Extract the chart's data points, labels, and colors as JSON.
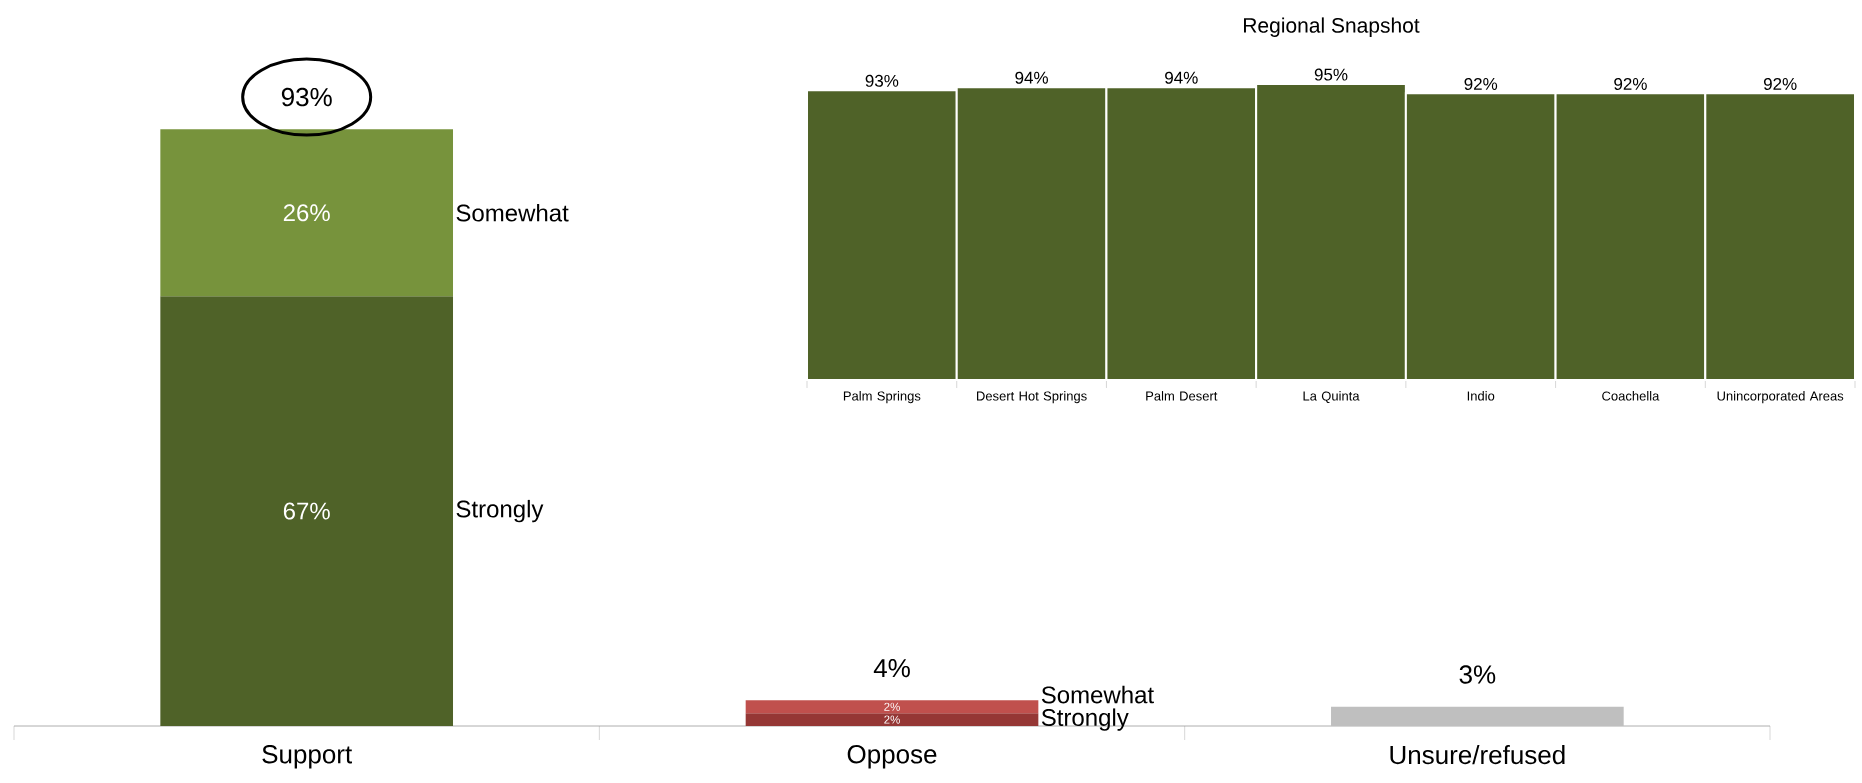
{
  "chart_data": [
    {
      "type": "bar",
      "stacked": true,
      "categories": [
        "Support",
        "Oppose",
        "Unsure/refused"
      ],
      "series": [
        {
          "name": "Strongly",
          "colors": [
            "#4f6228",
            "#953735",
            null
          ],
          "values": [
            67,
            2,
            null
          ],
          "value_labels": [
            "67%",
            "2%",
            null
          ]
        },
        {
          "name": "Somewhat",
          "colors": [
            "#77933c",
            "#c0504d",
            null
          ],
          "values": [
            26,
            2,
            null
          ],
          "value_labels": [
            "26%",
            "2%",
            null
          ]
        },
        {
          "color": "#bfbfbf",
          "values": [
            null,
            null,
            3
          ]
        }
      ],
      "totals": [
        "93%",
        "4%",
        "3%"
      ]
    },
    {
      "type": "bar",
      "title": "Regional Snapshot",
      "categories": [
        "Palm Springs",
        "Desert Hot Springs",
        "Palm Desert",
        "La Quinta",
        "Indio",
        "Coachella",
        "Unincorporated Areas"
      ],
      "values": [
        93,
        94,
        94,
        95,
        92,
        92,
        92
      ],
      "color": "#4f6228",
      "value_labels": [
        "93%",
        "94%",
        "94%",
        "95%",
        "92%",
        "92%",
        "92%"
      ]
    }
  ]
}
